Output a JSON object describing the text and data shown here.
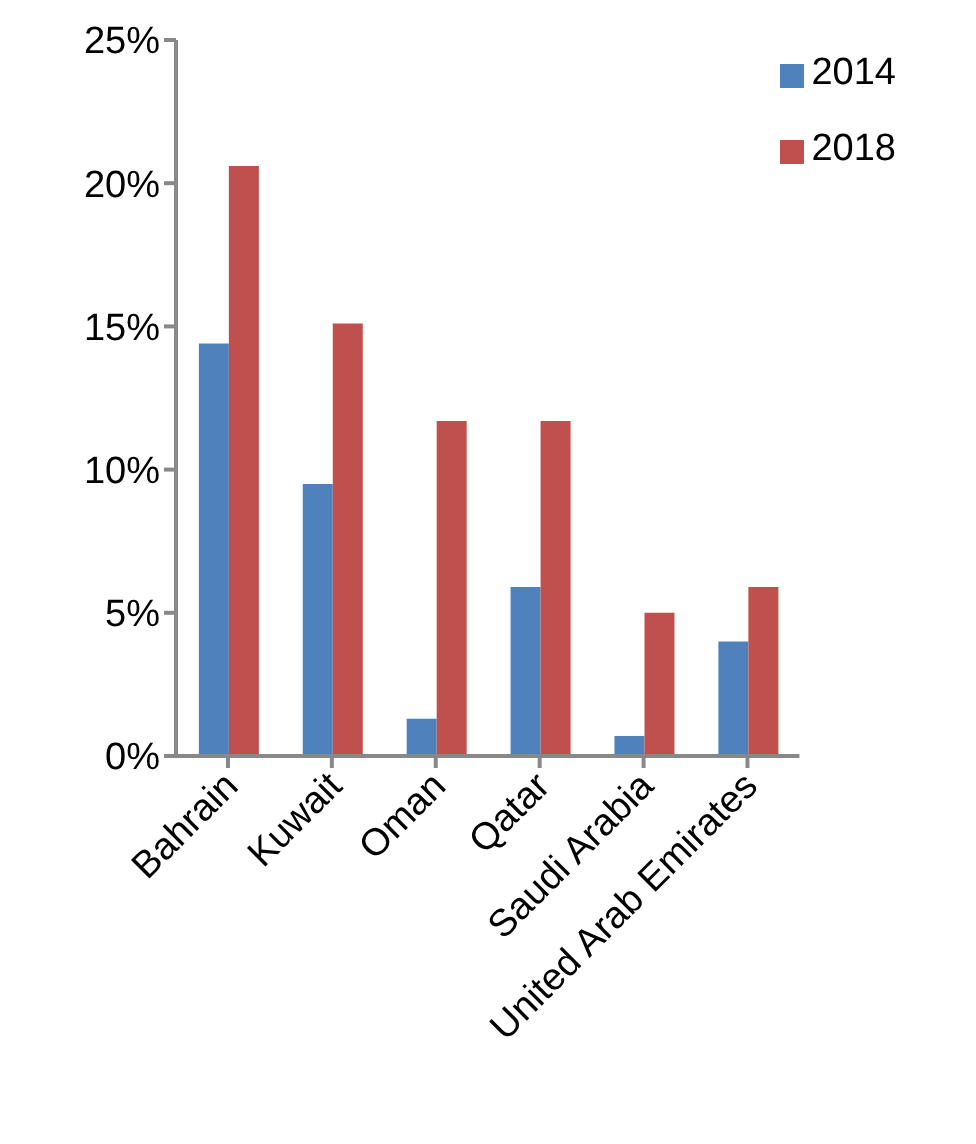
{
  "chart_data": {
    "type": "bar",
    "categories": [
      "Bahrain",
      "Kuwait",
      "Oman",
      "Qatar",
      "Saudi Arabia",
      "United Arab Emirates"
    ],
    "series": [
      {
        "name": "2014",
        "color": "#4f81bd",
        "values": [
          14.4,
          9.5,
          1.3,
          5.9,
          0.7,
          4.0
        ]
      },
      {
        "name": "2018",
        "color": "#c0504d",
        "values": [
          20.6,
          15.1,
          11.7,
          11.7,
          5.0,
          5.9
        ]
      }
    ],
    "ylim": [
      0,
      25
    ],
    "yticks": [
      {
        "value": 0,
        "label": "0%"
      },
      {
        "value": 5,
        "label": "5%"
      },
      {
        "value": 10,
        "label": "10%"
      },
      {
        "value": 15,
        "label": "15%"
      },
      {
        "value": 20,
        "label": "20%"
      },
      {
        "value": 25,
        "label": "25%"
      }
    ],
    "grid": false,
    "legend": "top right"
  }
}
